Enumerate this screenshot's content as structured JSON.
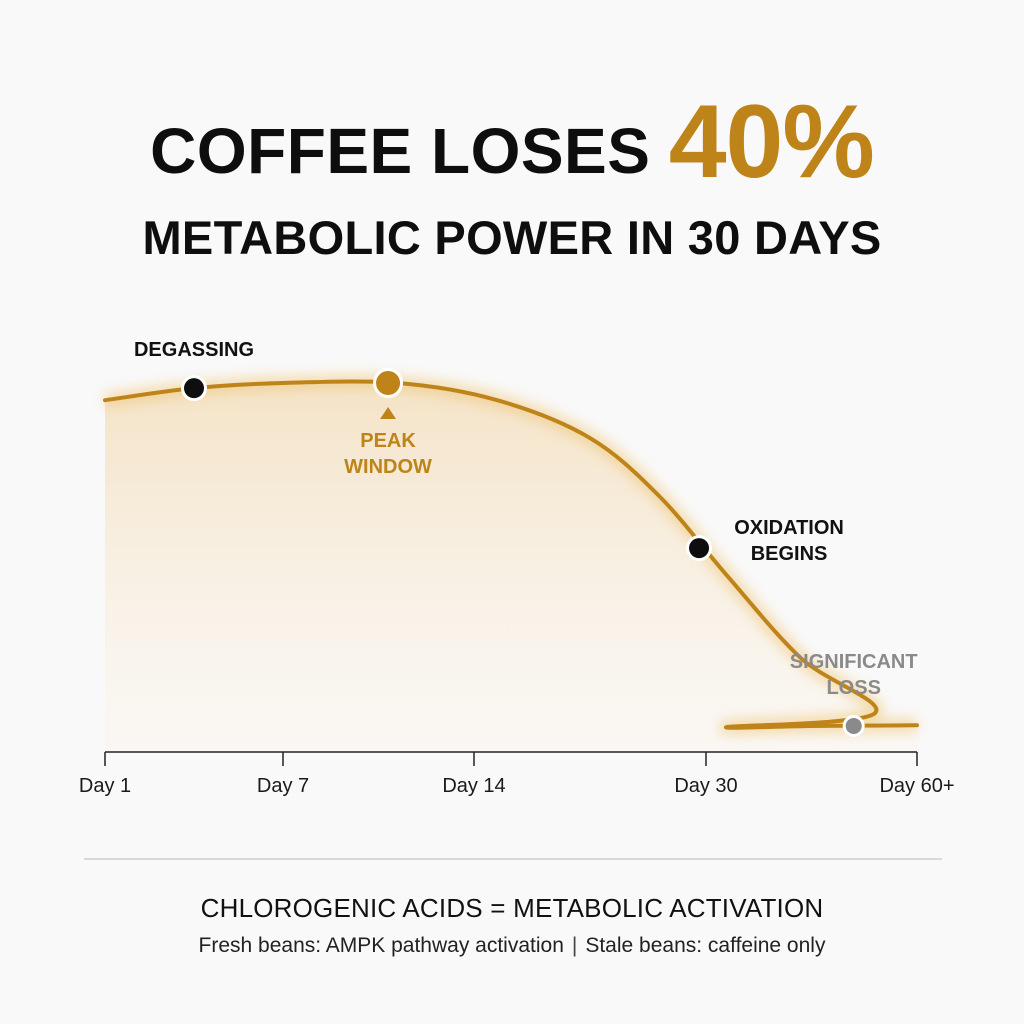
{
  "headline": {
    "line1_prefix": "COFFEE LOSES",
    "line1_accent": "40%",
    "line2": "METABOLIC POWER IN 30 DAYS"
  },
  "colors": {
    "accent": "#bf8419",
    "text": "#111111",
    "muted": "#8a8a8a",
    "point_dark": "#0e0e0e"
  },
  "chart_data": {
    "type": "line",
    "title": "COFFEE LOSES 40% METABOLIC POWER IN 30 DAYS",
    "xlabel": "",
    "ylabel": "",
    "x_ticks": [
      "Day 1",
      "Day 7",
      "Day 14",
      "Day 30",
      "Day 60+"
    ],
    "y_axis": "relative metabolic power (unlabeled, 0 = floor, 100 = peak)",
    "ylim": [
      0,
      100
    ],
    "grid": false,
    "series": [
      {
        "name": "metabolic power",
        "curve": [
          {
            "x": 0.0,
            "y": 95
          },
          {
            "x": 0.5,
            "y": 98.5
          },
          {
            "x": 1.0,
            "y": 100
          },
          {
            "x": 1.6,
            "y": 100
          },
          {
            "x": 2.1,
            "y": 95
          },
          {
            "x": 2.5,
            "y": 84
          },
          {
            "x": 2.8,
            "y": 67
          },
          {
            "x": 3.1,
            "y": 44
          },
          {
            "x": 3.45,
            "y": 20
          },
          {
            "x": 3.8,
            "y": 4
          },
          {
            "x": 4.2,
            "y": 0
          },
          {
            "x": 5.0,
            "y": 0.3
          },
          {
            "x": 6.0,
            "y": 0.5
          }
        ]
      }
    ],
    "annotations": [
      {
        "label_lines": [
          "DEGASSING"
        ],
        "x": 0.5,
        "y": 98.5,
        "style": "dark",
        "label_pos": "above"
      },
      {
        "label_lines": [
          "PEAK",
          "WINDOW"
        ],
        "x": 1.55,
        "y": 100,
        "style": "accent",
        "label_pos": "below",
        "marker": "triangle-up"
      },
      {
        "label_lines": [
          "OXIDATION",
          "BEGINS"
        ],
        "x": 2.97,
        "y": 52,
        "style": "dark",
        "label_pos": "right"
      },
      {
        "label_lines": [
          "SIGNIFICANT",
          "LOSS"
        ],
        "x": 5.4,
        "y": 0.3,
        "style": "muted",
        "label_pos": "above"
      }
    ]
  },
  "footer": {
    "title": "CHLOROGENIC ACIDS = METABOLIC ACTIVATION",
    "subtitle_left": "Fresh beans: AMPK pathway activation",
    "subtitle_sep": "|",
    "subtitle_right": "Stale beans: caffeine only"
  }
}
